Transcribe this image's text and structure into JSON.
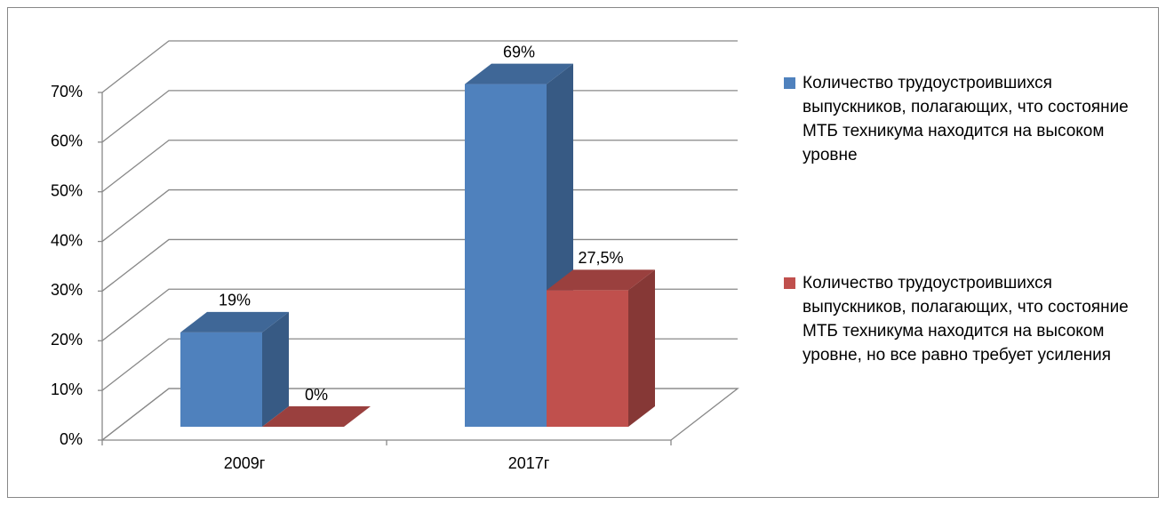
{
  "chart_data": {
    "type": "bar3d",
    "categories": [
      "2009г",
      "2017г"
    ],
    "series": [
      {
        "name": "Количество трудоустроившихся выпускников, полагающих, что состояние МТБ техникума находится на высоком уровне",
        "color": "#4f81bd",
        "values": [
          19,
          69
        ],
        "value_labels": [
          "19%",
          "69%"
        ]
      },
      {
        "name": "Количество трудоустроившихся выпускников, полагающих, что состояние МТБ техникума находится на высоком уровне, но все равно требует усиления",
        "color": "#c0504d",
        "values": [
          0,
          27.5
        ],
        "value_labels": [
          "0%",
          "27,5%"
        ]
      }
    ],
    "ylim": [
      0,
      70
    ],
    "yticks": [
      {
        "value": 0,
        "label": "0%"
      },
      {
        "value": 10,
        "label": "10%"
      },
      {
        "value": 20,
        "label": "20%"
      },
      {
        "value": 30,
        "label": "30%"
      },
      {
        "value": 40,
        "label": "40%"
      },
      {
        "value": 50,
        "label": "50%"
      },
      {
        "value": 60,
        "label": "60%"
      },
      {
        "value": 70,
        "label": "70%"
      }
    ],
    "grid": true,
    "legend": "right"
  }
}
